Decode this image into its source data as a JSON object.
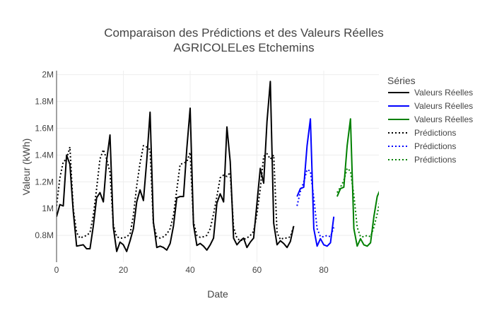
{
  "chart_data": {
    "type": "line",
    "title_lines": [
      "Comparaison des Prédictions et des Valeurs Réelles",
      "AGRICOLELes Etchemins"
    ],
    "xlabel": "Date",
    "ylabel": "Valeur (kWh)",
    "xlim": [
      0,
      96.5
    ],
    "ylim": [
      600000,
      2030000
    ],
    "x_ticks": [
      0,
      20,
      40,
      60,
      80
    ],
    "x_tick_labels": [
      "0",
      "20",
      "40",
      "60",
      "80"
    ],
    "y_ticks": [
      800000,
      1000000,
      1200000,
      1400000,
      1600000,
      1800000,
      2000000
    ],
    "y_tick_labels": [
      "0.8M",
      "1M",
      "1.2M",
      "1.4M",
      "1.6M",
      "1.8M",
      "2M"
    ],
    "grid": true,
    "legend_title": "Séries",
    "legend_position": "right",
    "series": [
      {
        "name": "Valeurs Réelles",
        "color": "#000000",
        "dash": "solid",
        "x": [
          0,
          1,
          2,
          3,
          4,
          5,
          6,
          7,
          8,
          9,
          10,
          11,
          12,
          13,
          14,
          15,
          16,
          17,
          18,
          19,
          20,
          21,
          22,
          23,
          24,
          25,
          26,
          27,
          28,
          29,
          30,
          31,
          32,
          33,
          34,
          35,
          36,
          37,
          38,
          39,
          40,
          41,
          42,
          43,
          44,
          45,
          46,
          47,
          48,
          49,
          50,
          51,
          52,
          53,
          54,
          55,
          56,
          57,
          58,
          59,
          60,
          61,
          62,
          63,
          64,
          65,
          66,
          67,
          68,
          69,
          70,
          71
        ],
        "y": [
          940000,
          1030000,
          1020000,
          1400000,
          1330000,
          980000,
          720000,
          725000,
          730000,
          700000,
          700000,
          870000,
          1080000,
          1120000,
          1050000,
          1360000,
          1550000,
          860000,
          680000,
          750000,
          730000,
          680000,
          760000,
          850000,
          1050000,
          1140000,
          1060000,
          1360000,
          1720000,
          900000,
          710000,
          720000,
          710000,
          690000,
          740000,
          870000,
          1080000,
          1090000,
          1090000,
          1450000,
          1750000,
          880000,
          725000,
          740000,
          720000,
          690000,
          730000,
          780000,
          1040000,
          1110000,
          1050000,
          1610000,
          1350000,
          780000,
          730000,
          760000,
          780000,
          710000,
          750000,
          780000,
          1040000,
          1300000,
          1190000,
          1650000,
          1950000,
          890000,
          730000,
          760000,
          740000,
          710000,
          755000,
          870000
        ]
      },
      {
        "name": "Valeurs Réelles",
        "color": "#0000ff",
        "dash": "solid",
        "x": [
          72,
          73,
          74,
          75,
          76,
          77,
          78,
          79,
          80,
          81,
          82,
          83
        ],
        "y": [
          1090000,
          1150000,
          1160000,
          1470000,
          1670000,
          850000,
          720000,
          775000,
          730000,
          720000,
          745000,
          940000
        ]
      },
      {
        "name": "Valeurs Réelles",
        "color": "#008000",
        "dash": "solid",
        "x": [
          84,
          85,
          86,
          87,
          88,
          89,
          90,
          91,
          92,
          93,
          94,
          95,
          96,
          97
        ],
        "y": [
          1090000,
          1150000,
          1160000,
          1470000,
          1670000,
          850000,
          720000,
          775000,
          730000,
          720000,
          745000,
          940000,
          1090000,
          1150000
        ]
      },
      {
        "name": "Prédictions",
        "color": "#000000",
        "dash": "dot",
        "x": [
          0,
          1,
          2,
          3,
          4,
          5,
          6,
          7,
          8,
          9,
          10,
          11,
          12,
          13,
          14,
          15,
          16,
          17,
          18,
          19,
          20,
          21,
          22,
          23,
          24,
          25,
          26,
          27,
          28,
          29,
          30,
          31,
          32,
          33,
          34,
          35,
          36,
          37,
          38,
          39,
          40,
          41,
          42,
          43,
          44,
          45,
          46,
          47,
          48,
          49,
          50,
          51,
          52,
          53,
          54,
          55,
          56,
          57,
          58,
          59,
          60,
          61,
          62,
          63,
          64,
          65,
          66,
          67,
          68,
          69,
          70,
          71
        ],
        "y": [
          1020000,
          1230000,
          1350000,
          1370000,
          1460000,
          1000000,
          820000,
          780000,
          790000,
          800000,
          820000,
          950000,
          1150000,
          1370000,
          1440000,
          1370000,
          1270000,
          880000,
          790000,
          780000,
          780000,
          790000,
          810000,
          950000,
          1170000,
          1340000,
          1470000,
          1460000,
          1440000,
          880000,
          790000,
          780000,
          790000,
          810000,
          850000,
          950000,
          1140000,
          1330000,
          1340000,
          1350000,
          1420000,
          900000,
          800000,
          785000,
          790000,
          800000,
          850000,
          960000,
          1090000,
          1230000,
          1250000,
          1240000,
          1270000,
          860000,
          780000,
          760000,
          770000,
          780000,
          800000,
          830000,
          960000,
          1150000,
          1390000,
          1410000,
          1370000,
          1400000,
          820000,
          770000,
          780000,
          780000,
          790000,
          870000
        ]
      },
      {
        "name": "Prédictions",
        "color": "#0000ff",
        "dash": "dot",
        "x": [
          72,
          73,
          74,
          75,
          76,
          77,
          78,
          79,
          80,
          81,
          82,
          83
        ],
        "y": [
          1020000,
          1130000,
          1200000,
          1290000,
          1280000,
          1080000,
          850000,
          790000,
          790000,
          800000,
          790000,
          860000
        ]
      },
      {
        "name": "Prédictions",
        "color": "#008000",
        "dash": "dot",
        "x": [
          84,
          85,
          86,
          87,
          88,
          89,
          90,
          91,
          92,
          93,
          94,
          95,
          96,
          97
        ],
        "y": [
          1120000,
          1160000,
          1210000,
          1300000,
          1280000,
          1100000,
          860000,
          790000,
          790000,
          800000,
          790000,
          860000,
          960000,
          1080000
        ]
      }
    ]
  }
}
